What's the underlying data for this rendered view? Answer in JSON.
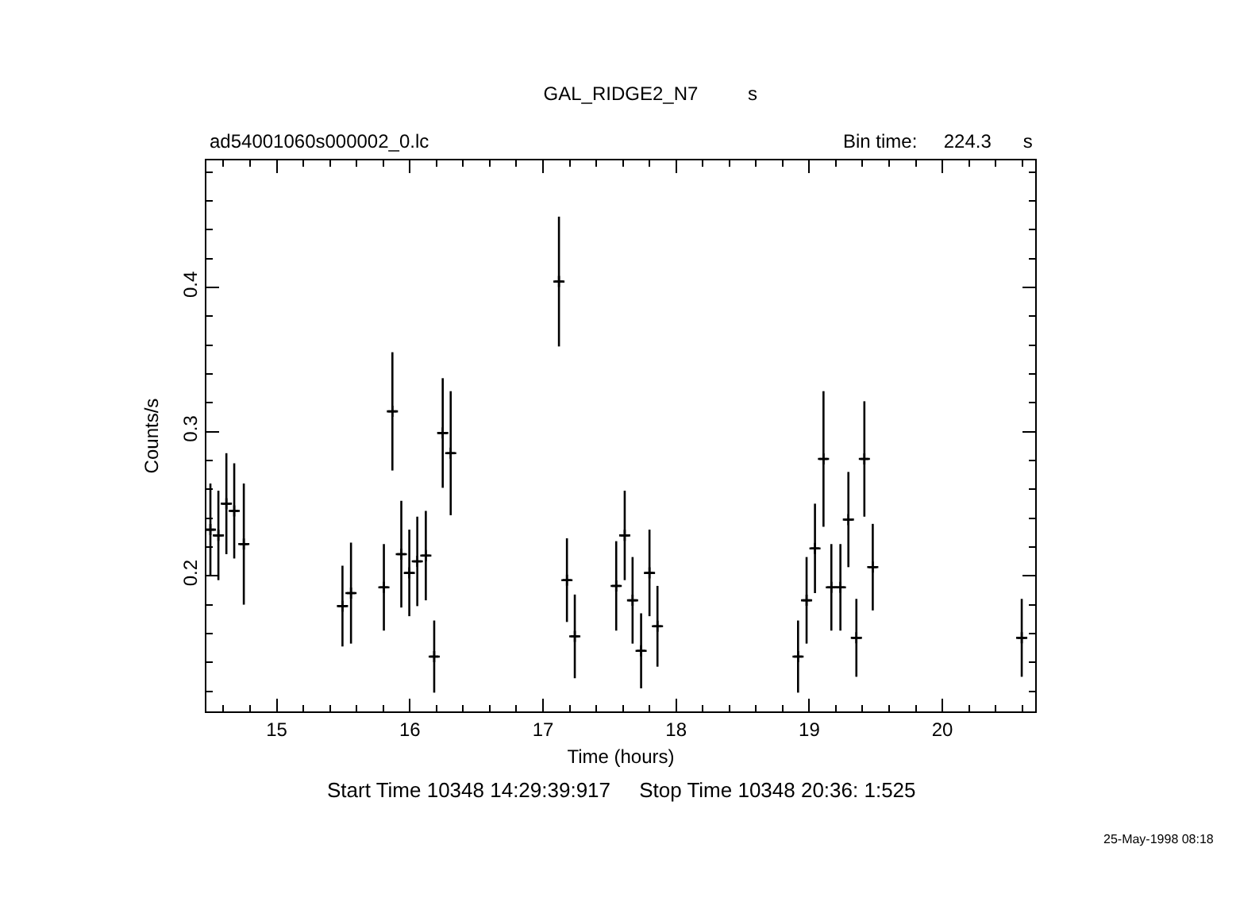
{
  "chart_data": {
    "type": "scatter",
    "title": "GAL_RIDGE2_N7",
    "xlabel": "Time (hours)",
    "ylabel": "Counts/s",
    "annotations": [
      "s",
      "ad54001060s000002_0.lc",
      "Bin time:     224.3      s",
      "Start Time 10348 14:29:39:917     Stop Time 10348 20:36: 1:525",
      "25-May-1998 08:18"
    ],
    "x": [
      14.502,
      14.562,
      14.622,
      14.681,
      14.753,
      15.494,
      15.558,
      15.805,
      15.869,
      15.936,
      15.996,
      16.056,
      16.12,
      16.183,
      16.247,
      16.307,
      17.12,
      17.18,
      17.239,
      17.55,
      17.614,
      17.673,
      17.737,
      17.8,
      17.86,
      18.916,
      18.98,
      19.043,
      19.107,
      19.166,
      19.234,
      19.294,
      19.354,
      19.414,
      19.477,
      20.596
    ],
    "series": [
      {
        "color": "#000000",
        "values": [
          0.232,
          0.228,
          0.25,
          0.245,
          0.222,
          0.179,
          0.188,
          0.192,
          0.314,
          0.215,
          0.202,
          0.21,
          0.214,
          0.144,
          0.299,
          0.285,
          0.404,
          0.197,
          0.158,
          0.193,
          0.228,
          0.183,
          0.148,
          0.202,
          0.165,
          0.144,
          0.183,
          0.219,
          0.281,
          0.192,
          0.192,
          0.239,
          0.157,
          0.281,
          0.206,
          0.157
        ],
        "errors": [
          0.032,
          0.031,
          0.035,
          0.033,
          0.042,
          0.028,
          0.035,
          0.03,
          0.041,
          0.037,
          0.03,
          0.031,
          0.031,
          0.025,
          0.038,
          0.043,
          0.045,
          0.029,
          0.029,
          0.031,
          0.031,
          0.03,
          0.026,
          0.03,
          0.028,
          0.025,
          0.03,
          0.031,
          0.047,
          0.03,
          0.03,
          0.033,
          0.027,
          0.04,
          0.03,
          0.027
        ],
        "xerrors": [
          0.031,
          0.031,
          0.031,
          0.031,
          0.031,
          0.031,
          0.031,
          0.031,
          0.031,
          0.031,
          0.031,
          0.031,
          0.031,
          0.031,
          0.031,
          0.031,
          0.031,
          0.031,
          0.031,
          0.031,
          0.031,
          0.031,
          0.031,
          0.031,
          0.031,
          0.031,
          0.031,
          0.031,
          0.031,
          0.031,
          0.031,
          0.031,
          0.031,
          0.031,
          0.031,
          0.031
        ]
      }
    ],
    "xlim": [
      14.472,
      20.697
    ],
    "xticks": [
      15,
      16,
      17,
      18,
      19,
      20
    ],
    "ylim": [
      0.106,
      0.488
    ],
    "yticks": [
      0.2,
      0.3,
      0.4
    ],
    "grid": false,
    "marker": "cross"
  }
}
